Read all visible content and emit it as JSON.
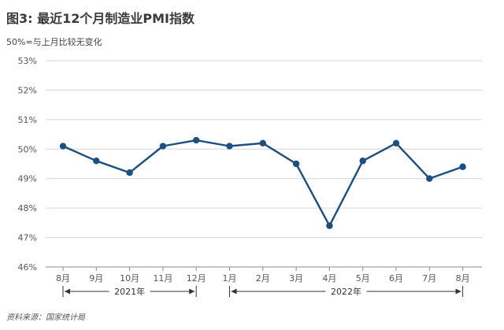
{
  "title": "图3: 最近12个月制造业PMI指数",
  "subtitle": "50%=与上月比较无变化",
  "source": "资料来源：国家统计局",
  "colors": {
    "line": "#1d4e80",
    "grid": "#d6d6d6",
    "axis": "#8c8c8c"
  },
  "chart_data": {
    "type": "line",
    "title": "图3: 最近12个月制造业PMI指数",
    "subtitle": "50%=与上月比较无变化",
    "categories": [
      "8月",
      "9月",
      "10月",
      "11月",
      "12月",
      "1月",
      "2月",
      "3月",
      "4月",
      "5月",
      "6月",
      "7月",
      "8月"
    ],
    "values": [
      50.1,
      49.6,
      49.2,
      50.1,
      50.3,
      50.1,
      50.2,
      49.5,
      47.4,
      49.6,
      50.2,
      49.0,
      49.4
    ],
    "ylim": [
      46,
      53
    ],
    "yticks": [
      "46%",
      "47%",
      "48%",
      "49%",
      "50%",
      "51%",
      "52%",
      "53%"
    ],
    "grid": true,
    "year_groups": [
      {
        "label": "2021年",
        "start": 0,
        "end": 4
      },
      {
        "label": "2022年",
        "start": 5,
        "end": 12
      }
    ]
  }
}
